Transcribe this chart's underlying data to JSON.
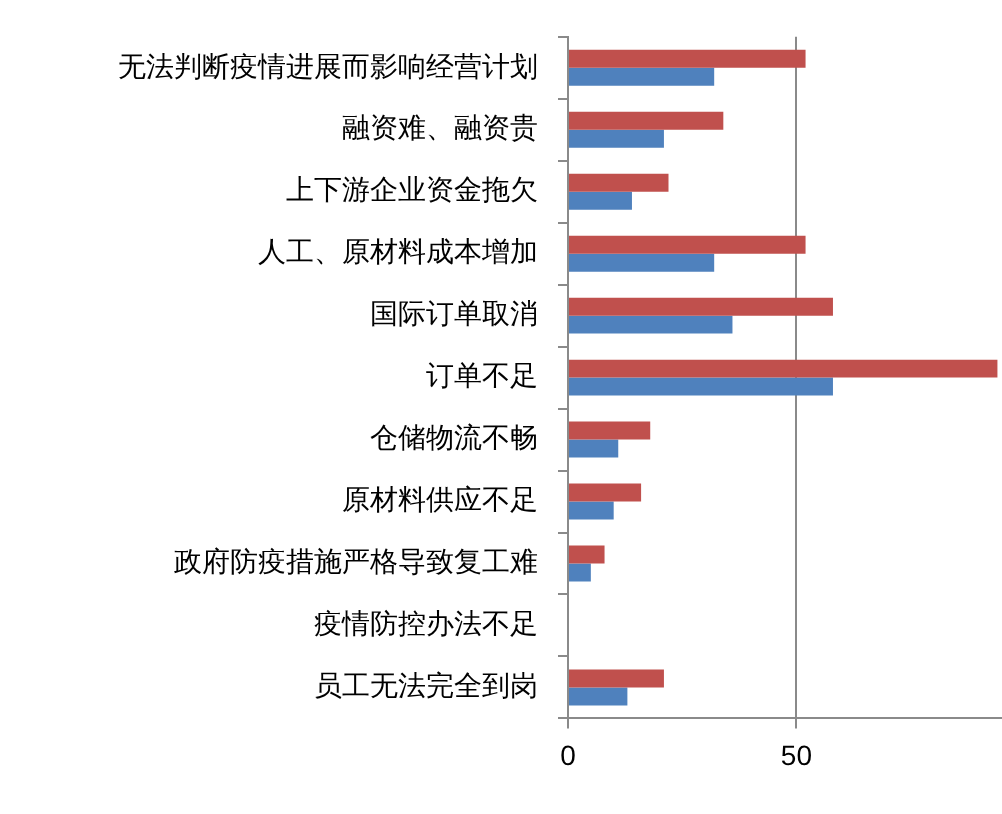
{
  "chart_data": {
    "type": "bar",
    "orientation": "horizontal",
    "categories": [
      "无法判断疫情进展而影响经营计划",
      "融资难、融资贵",
      "上下游企业资金拖欠",
      "人工、原材料成本增加",
      "国际订单取消",
      "订单不足",
      "仓储物流不畅",
      "原材料供应不足",
      "政府防疫措施严格导致复工难",
      "疫情防控办法不足",
      "员工无法完全到岗"
    ],
    "series": [
      {
        "color": "#c0504d",
        "values": [
          52,
          34,
          22,
          52,
          58,
          94,
          18,
          16,
          8,
          0,
          21
        ]
      },
      {
        "color": "#4f81bd",
        "values": [
          32,
          21,
          14,
          32,
          36,
          58,
          11,
          10,
          5,
          0,
          13
        ]
      }
    ],
    "xlim": [
      0,
      95
    ],
    "xticks": [
      0,
      50
    ],
    "grid": "x"
  }
}
